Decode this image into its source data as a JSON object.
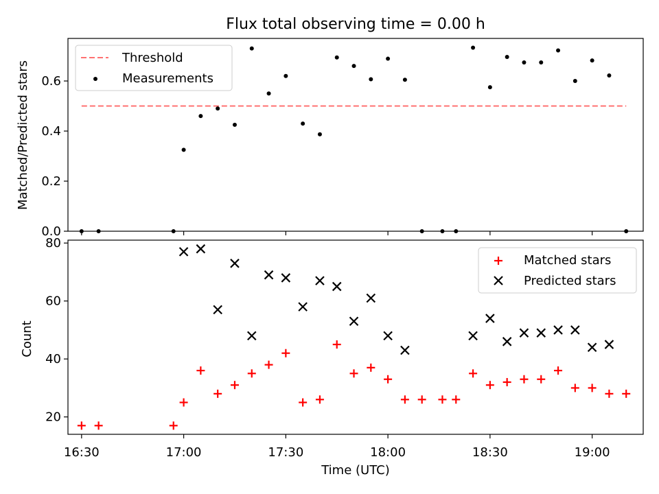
{
  "figure": {
    "title": "Flux total observing time = 0.00 h"
  },
  "chart_data": [
    {
      "type": "scatter",
      "ylabel": "Matched/Predicted stars",
      "xlim": [
        "16:26",
        "19:15"
      ],
      "ylim": [
        0,
        0.77
      ],
      "yticks": [
        0.0,
        0.2,
        0.4,
        0.6
      ],
      "ytick_labels": [
        "0.0",
        "0.2",
        "0.4",
        "0.6"
      ],
      "legend_position": "upper left",
      "threshold": {
        "name": "Threshold",
        "value": 0.5,
        "x_from": "16:30",
        "x_to": "19:10",
        "color": "#ff7070",
        "style": "dashed"
      },
      "series": [
        {
          "name": "Measurements",
          "color": "#000000",
          "marker": "dot",
          "x": [
            "16:30",
            "16:35",
            "16:57",
            "17:00",
            "17:05",
            "17:10",
            "17:15",
            "17:20",
            "17:25",
            "17:30",
            "17:35",
            "17:40",
            "17:45",
            "17:50",
            "17:55",
            "18:00",
            "18:05",
            "18:10",
            "18:16",
            "18:20",
            "18:25",
            "18:30",
            "18:35",
            "18:40",
            "18:45",
            "18:50",
            "18:55",
            "19:00",
            "19:05",
            "19:10"
          ],
          "y": [
            0.0,
            0.0,
            0.0,
            0.325,
            0.46,
            0.49,
            0.425,
            0.73,
            0.55,
            0.62,
            0.43,
            0.387,
            0.694,
            0.66,
            0.607,
            0.689,
            0.605,
            0.0,
            0.0,
            0.0,
            0.733,
            0.575,
            0.696,
            0.674,
            0.674,
            0.722,
            0.6,
            0.682,
            0.622,
            0.0
          ]
        }
      ]
    },
    {
      "type": "scatter",
      "xlabel": "Time (UTC)",
      "ylabel": "Count",
      "xlim": [
        "16:26",
        "19:15"
      ],
      "ylim": [
        14,
        81
      ],
      "xticks": [
        "16:30",
        "17:00",
        "17:30",
        "18:00",
        "18:30",
        "19:00"
      ],
      "xtick_labels": [
        "16:30",
        "17:00",
        "17:30",
        "18:00",
        "18:30",
        "19:00"
      ],
      "yticks": [
        20,
        40,
        60,
        80
      ],
      "ytick_labels": [
        "20",
        "40",
        "60",
        "80"
      ],
      "legend_position": "upper right",
      "series": [
        {
          "name": "Matched stars",
          "color": "#ff0000",
          "marker": "plus",
          "x": [
            "16:30",
            "16:35",
            "16:57",
            "17:00",
            "17:05",
            "17:10",
            "17:15",
            "17:20",
            "17:25",
            "17:30",
            "17:35",
            "17:40",
            "17:45",
            "17:50",
            "17:55",
            "18:00",
            "18:05",
            "18:10",
            "18:16",
            "18:20",
            "18:25",
            "18:30",
            "18:35",
            "18:40",
            "18:45",
            "18:50",
            "18:55",
            "19:00",
            "19:05",
            "19:10"
          ],
          "y": [
            17,
            17,
            17,
            25,
            36,
            28,
            31,
            35,
            38,
            42,
            25,
            26,
            45,
            35,
            37,
            33,
            26,
            26,
            26,
            26,
            35,
            31,
            32,
            33,
            33,
            36,
            30,
            30,
            28,
            28
          ]
        },
        {
          "name": "Predicted stars",
          "color": "#000000",
          "marker": "x",
          "x": [
            "17:00",
            "17:05",
            "17:10",
            "17:15",
            "17:20",
            "17:25",
            "17:30",
            "17:35",
            "17:40",
            "17:45",
            "17:50",
            "17:55",
            "18:00",
            "18:05",
            "18:25",
            "18:30",
            "18:35",
            "18:40",
            "18:45",
            "18:50",
            "18:55",
            "19:00",
            "19:05"
          ],
          "y": [
            77,
            78,
            57,
            73,
            48,
            69,
            68,
            58,
            67,
            65,
            53,
            61,
            48,
            43,
            48,
            54,
            46,
            49,
            49,
            50,
            50,
            44,
            45
          ]
        }
      ]
    }
  ]
}
